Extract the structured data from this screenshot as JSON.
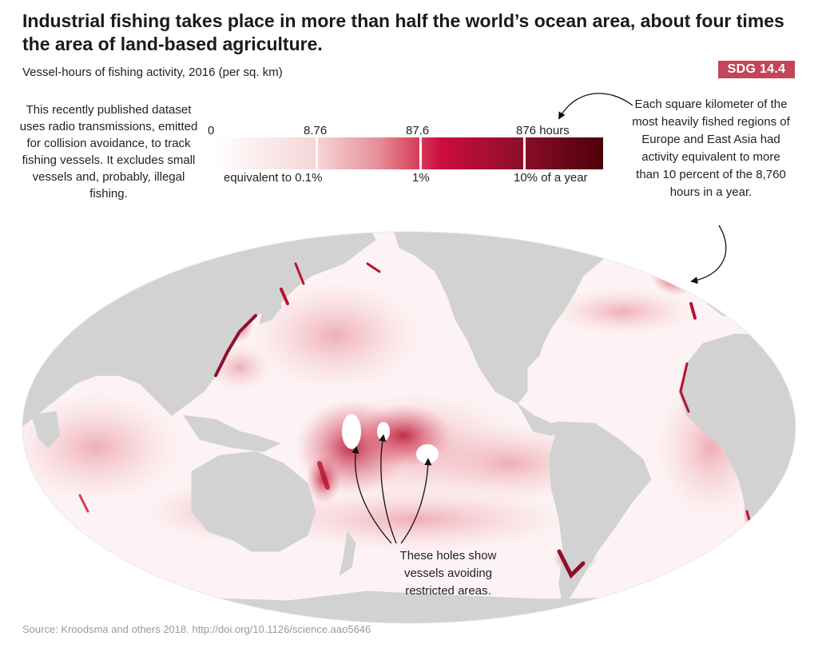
{
  "title": "Industrial fishing takes place in more than half the world’s ocean area, about four times the area of land-based agriculture.",
  "subtitle": "Vessel-hours of fishing activity, 2016 (per sq. km)",
  "badge": "SDG 14.4",
  "left_note": "This recently published dataset uses radio transmissions, emitted for collision avoidance, to track fishing vessels. It excludes small vessels and, probably, illegal fishing.",
  "right_note": "Each square kilometer of the most heavily fished regions of Europe and East Asia had activity equivalent to more than 10 percent of the 8,760 hours in a year.",
  "holes_note": "These holes show vessels avoiding restricted areas.",
  "legend": {
    "ticks": [
      "0",
      "8.76",
      "87.6",
      "876 hours"
    ],
    "equivalents": [
      "equivalent to 0.1%",
      "1%",
      "10% of a year"
    ],
    "colors": [
      "#ffffff",
      "#f6d6d8",
      "#e68f98",
      "#cc0c3f",
      "#4e0008"
    ]
  },
  "map": {
    "land_color": "#d2d2d2",
    "ocean_color": "#ffffff",
    "activity_color": "#c8102e"
  },
  "source": "Source: Kroodsma and others 2018. http://doi.org/10.1126/science.aao5646"
}
